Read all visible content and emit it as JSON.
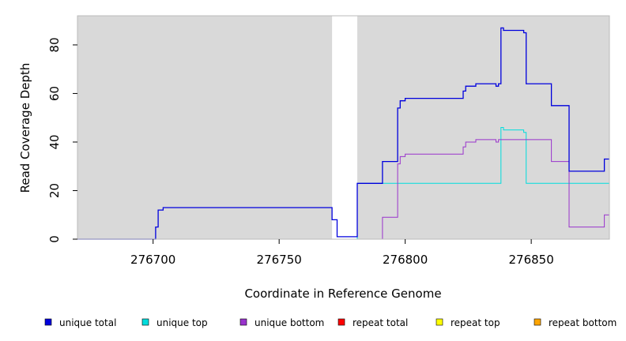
{
  "chart_data": {
    "type": "line",
    "title": "",
    "xlabel": "Coordinate in Reference Genome",
    "ylabel": "Read Coverage Depth",
    "xlim": [
      276670,
      276881
    ],
    "ylim": [
      0,
      92
    ],
    "xticks": [
      276700,
      276750,
      276800,
      276850
    ],
    "yticks": [
      0,
      20,
      40,
      60,
      80
    ],
    "xtick_labels": [
      "276700",
      "276750",
      "276800",
      "276850"
    ],
    "ytick_labels": [
      "0",
      "20",
      "40",
      "60",
      "80"
    ],
    "grid": false,
    "background": "#d9d9d9",
    "shaded_regions": [
      {
        "x0": 276670,
        "x1": 276771
      },
      {
        "x0": 276781,
        "x1": 276881
      }
    ],
    "legend_position": "bottom",
    "series": [
      {
        "name": "unique total",
        "color": "#0000dd",
        "x": [
          276670,
          276701,
          276702,
          276704,
          276705,
          276771,
          276773,
          276781,
          276791,
          276797,
          276798,
          276800,
          276823,
          276824,
          276828,
          276836,
          276837,
          276838,
          276839,
          276847,
          276848,
          276858,
          276865,
          276879,
          276881
        ],
        "y": [
          0,
          5,
          12,
          13,
          13,
          8,
          1,
          23,
          32,
          54,
          57,
          58,
          61,
          63,
          64,
          63,
          64,
          87,
          86,
          85,
          64,
          55,
          28,
          33,
          33
        ]
      },
      {
        "name": "unique top",
        "color": "#00dddd",
        "x": [
          276670,
          276781,
          276838,
          276839,
          276847,
          276848,
          276881
        ],
        "y": [
          0,
          23,
          46,
          45,
          44,
          23,
          23
        ]
      },
      {
        "name": "unique bottom",
        "color": "#9933cc",
        "x": [
          276670,
          276791,
          276797,
          276798,
          276800,
          276823,
          276824,
          276828,
          276836,
          276837,
          276858,
          276865,
          276879,
          276881
        ],
        "y": [
          0,
          9,
          31,
          34,
          35,
          38,
          40,
          41,
          40,
          41,
          32,
          5,
          10,
          10
        ]
      },
      {
        "name": "repeat total",
        "color": "#ff0000",
        "x": [
          276670,
          276881
        ],
        "y": [
          0,
          0
        ]
      },
      {
        "name": "repeat top",
        "color": "#ffff00",
        "x": [
          276670,
          276881
        ],
        "y": [
          0,
          0
        ]
      },
      {
        "name": "repeat bottom",
        "color": "#ffa500",
        "x": [
          276670,
          276881
        ],
        "y": [
          0,
          0
        ]
      }
    ]
  }
}
